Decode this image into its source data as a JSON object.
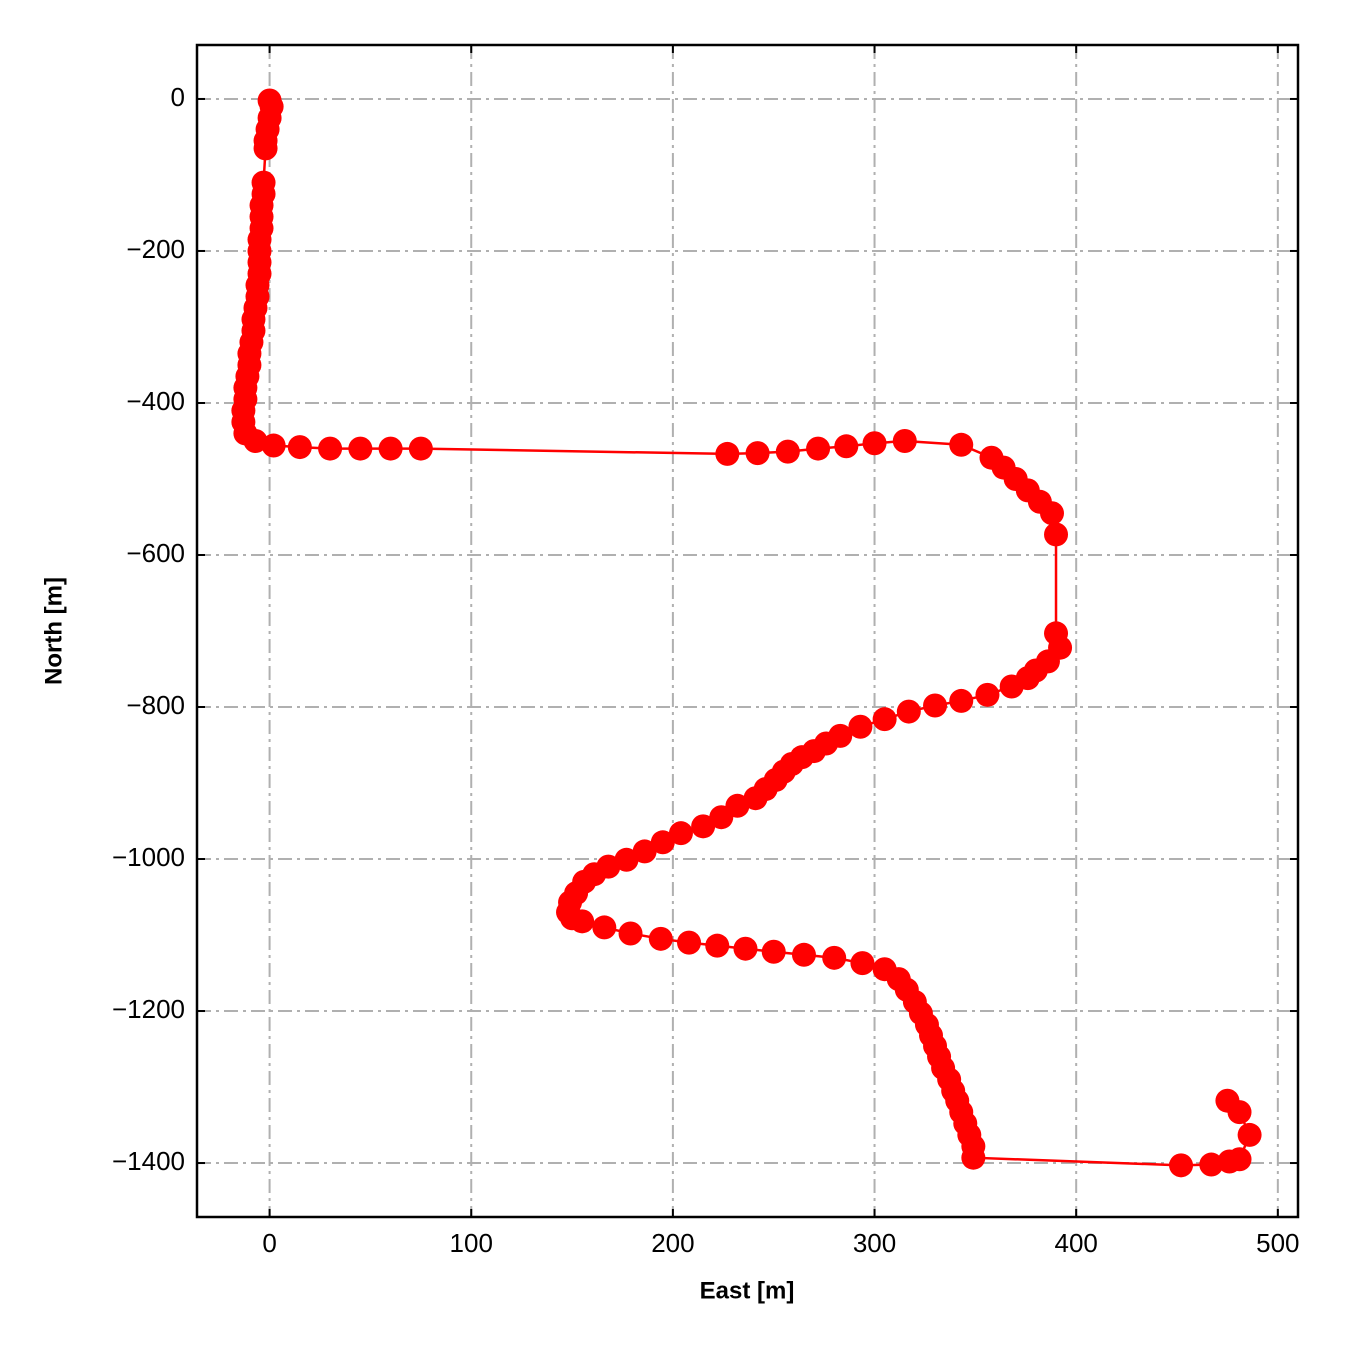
{
  "chart_data": {
    "type": "line",
    "x_label": "East [m]",
    "y_label": "North [m]",
    "xlim": [
      -36,
      510
    ],
    "ylim": [
      -1471,
      71
    ],
    "xticks": [
      0,
      100,
      200,
      300,
      400,
      500
    ],
    "yticks": [
      0,
      {
        "value": -200,
        "label": "−200"
      },
      {
        "value": -400,
        "label": "−400"
      },
      {
        "value": -600,
        "label": "−600"
      },
      {
        "value": -800,
        "label": "−800"
      },
      {
        "value": -1000,
        "label": "−1000"
      },
      {
        "value": -1200,
        "label": "−1200"
      },
      {
        "value": -1400,
        "label": "−1400"
      }
    ],
    "grid": true,
    "series": [
      {
        "color": "#ff0000",
        "markers": true,
        "x": [
          0,
          1,
          0,
          -1,
          -2,
          -2,
          -3,
          -3,
          -4,
          -4,
          -4,
          -5,
          -5,
          -5,
          -5,
          -6,
          -6,
          -7,
          -8,
          -8,
          -9,
          -10,
          -10,
          -11,
          -12,
          -12,
          -13,
          -13,
          -12,
          -7,
          2,
          15,
          30,
          45,
          60,
          75,
          227,
          242,
          257,
          272,
          286,
          300,
          315,
          343,
          358,
          364,
          370,
          376,
          382,
          388,
          390,
          390,
          392,
          386,
          380,
          376,
          368,
          356,
          343,
          330,
          317,
          305,
          293,
          283,
          276,
          270,
          264,
          259,
          255,
          251,
          246,
          241,
          232,
          224,
          215,
          204,
          195,
          186,
          177,
          168,
          161,
          156,
          152,
          149,
          148,
          150,
          155,
          166,
          179,
          194,
          208,
          222,
          236,
          250,
          265,
          280,
          294,
          305,
          312,
          316,
          320,
          323,
          326,
          328,
          330,
          332,
          334,
          337,
          339,
          341,
          343,
          345,
          347,
          349,
          349,
          452,
          467,
          476,
          481,
          486,
          481,
          475
        ],
        "values": [
          -2,
          -10,
          -25,
          -40,
          -55,
          -65,
          -110,
          -125,
          -140,
          -155,
          -170,
          -185,
          -200,
          -215,
          -230,
          -245,
          -260,
          -275,
          -290,
          -305,
          -320,
          -335,
          -350,
          -365,
          -380,
          -395,
          -410,
          -425,
          -440,
          -450,
          -456,
          -458,
          -460,
          -460,
          -460,
          -460,
          -467,
          -466,
          -464,
          -460,
          -457,
          -453,
          -450,
          -455,
          -472,
          -485,
          -500,
          -515,
          -530,
          -545,
          -573,
          -703,
          -722,
          -740,
          -752,
          -762,
          -773,
          -784,
          -792,
          -798,
          -806,
          -816,
          -826,
          -838,
          -848,
          -858,
          -866,
          -875,
          -885,
          -896,
          -908,
          -920,
          -930,
          -945,
          -957,
          -966,
          -978,
          -990,
          -1001,
          -1010,
          -1020,
          -1030,
          -1045,
          -1057,
          -1070,
          -1078,
          -1082,
          -1090,
          -1098,
          -1105,
          -1110,
          -1114,
          -1118,
          -1122,
          -1126,
          -1130,
          -1137,
          -1145,
          -1158,
          -1172,
          -1188,
          -1203,
          -1218,
          -1232,
          -1246,
          -1260,
          -1275,
          -1290,
          -1305,
          -1318,
          -1333,
          -1348,
          -1363,
          -1378,
          -1393,
          -1403,
          -1402,
          -1398,
          -1395,
          -1363,
          -1333,
          -1318
        ]
      }
    ]
  }
}
